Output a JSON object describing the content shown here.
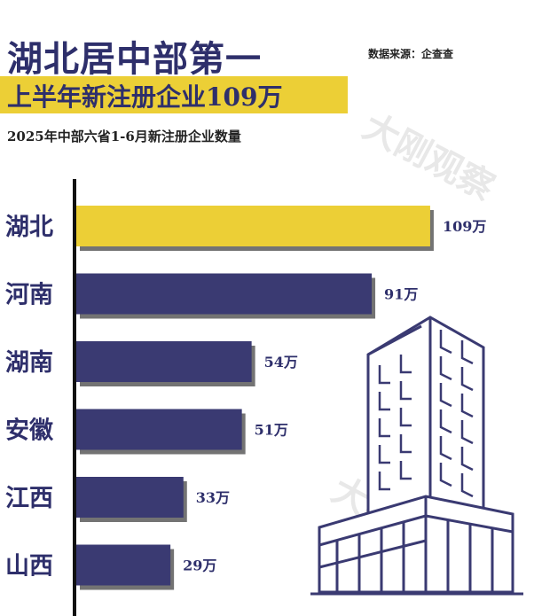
{
  "header": {
    "title": "湖北居中部第一",
    "banner": "上半年新注册企业109万",
    "subtitle": "2025年中部六省1-6月新注册企业数量",
    "source": "数据来源：企查查"
  },
  "watermarks": [
    "大刚观察",
    "大刚观察"
  ],
  "colors": {
    "accent": "#eccf36",
    "bar": "#3a3a72",
    "text": "#2e2f6b"
  },
  "illustration": {
    "icon": "office-building-icon"
  },
  "chart_data": {
    "type": "bar",
    "orientation": "horizontal",
    "title": "2025年中部六省1-6月新注册企业数量",
    "unit": "万",
    "categories": [
      "湖北",
      "河南",
      "湖南",
      "安徽",
      "江西",
      "山西"
    ],
    "values": [
      109,
      91,
      54,
      51,
      33,
      29
    ],
    "value_labels": [
      "109万",
      "91万",
      "54万",
      "51万",
      "33万",
      "29万"
    ],
    "highlight": "湖北",
    "grid": false,
    "legend": "none"
  }
}
